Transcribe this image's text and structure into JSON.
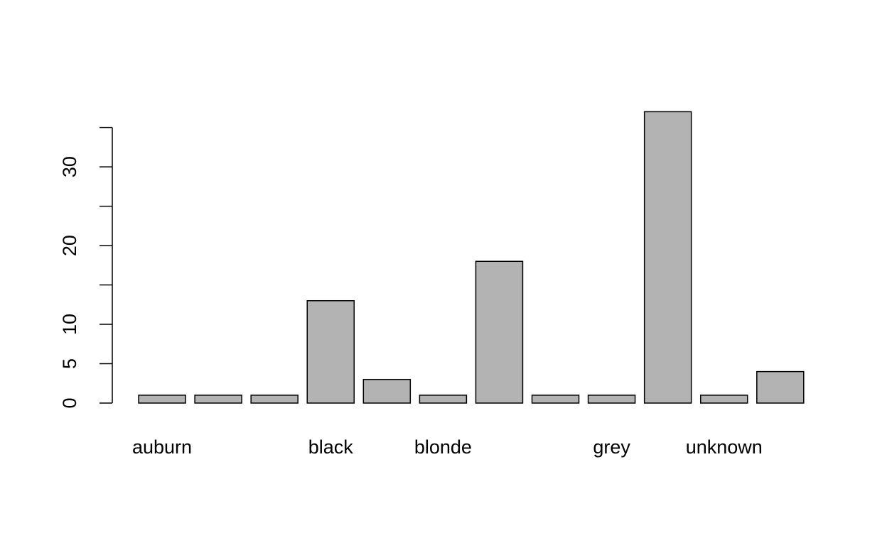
{
  "chart_data": {
    "type": "bar",
    "categories": [
      "auburn",
      null,
      null,
      "black",
      null,
      "blonde",
      null,
      null,
      "grey",
      null,
      "unknown",
      null
    ],
    "values": [
      1,
      1,
      1,
      13,
      3,
      1,
      18,
      1,
      1,
      37,
      1,
      4
    ],
    "color": "#b3b3b3",
    "ylim": [
      0,
      38.48
    ],
    "yticks": [
      0,
      5,
      10,
      {
        "value": 15,
        "label": null
      },
      20,
      {
        "value": 25,
        "label": null
      },
      30,
      {
        "value": 35,
        "label": null
      }
    ]
  }
}
